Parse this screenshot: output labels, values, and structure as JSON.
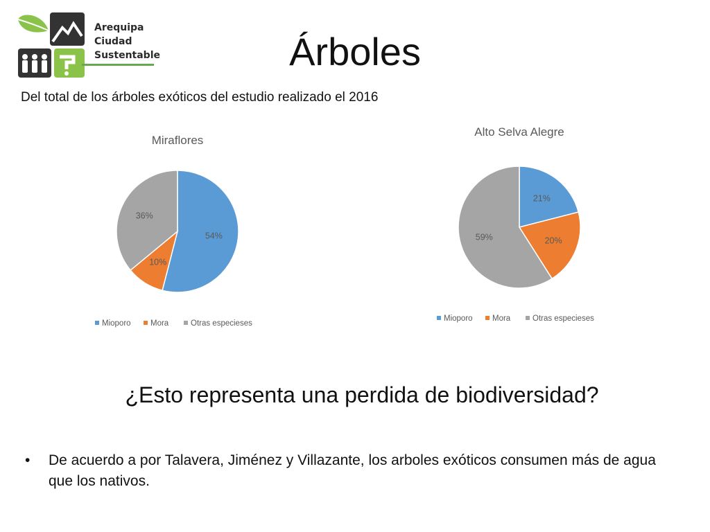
{
  "logo": {
    "lines": [
      "Arequipa",
      "Ciudad",
      "Sustentable"
    ],
    "colors": {
      "leaf": "#8bc34a",
      "dark": "#333333",
      "green": "#6aa84f"
    }
  },
  "title": "Árboles",
  "subtitle": "Del total de los árboles exóticos del estudio realizado el 2016",
  "question": "¿Esto representa una perdida de biodiversidad?",
  "bullet": {
    "symbol": "•",
    "text": "De acuerdo a por Talavera, Jiménez y Villazante, los arboles exóticos consumen más de agua que los nativos."
  },
  "colors": {
    "mioporo": "#5b9bd5",
    "mora": "#ed7d31",
    "otras": "#a5a5a5",
    "label": "#595959",
    "title": "#595959"
  },
  "chart_data": [
    {
      "type": "pie",
      "title": "Miraflores",
      "categories": [
        "Mioporo",
        "Mora",
        "Otras especieses"
      ],
      "values": [
        54,
        10,
        36
      ],
      "labels": [
        "54%",
        "10%",
        "36%"
      ],
      "legend": "bottom"
    },
    {
      "type": "pie",
      "title": "Alto Selva Alegre",
      "categories": [
        "Mioporo",
        "Mora",
        "Otras especieses"
      ],
      "values": [
        21,
        20,
        59
      ],
      "labels": [
        "21%",
        "20%",
        "59%"
      ],
      "legend": "bottom"
    }
  ]
}
